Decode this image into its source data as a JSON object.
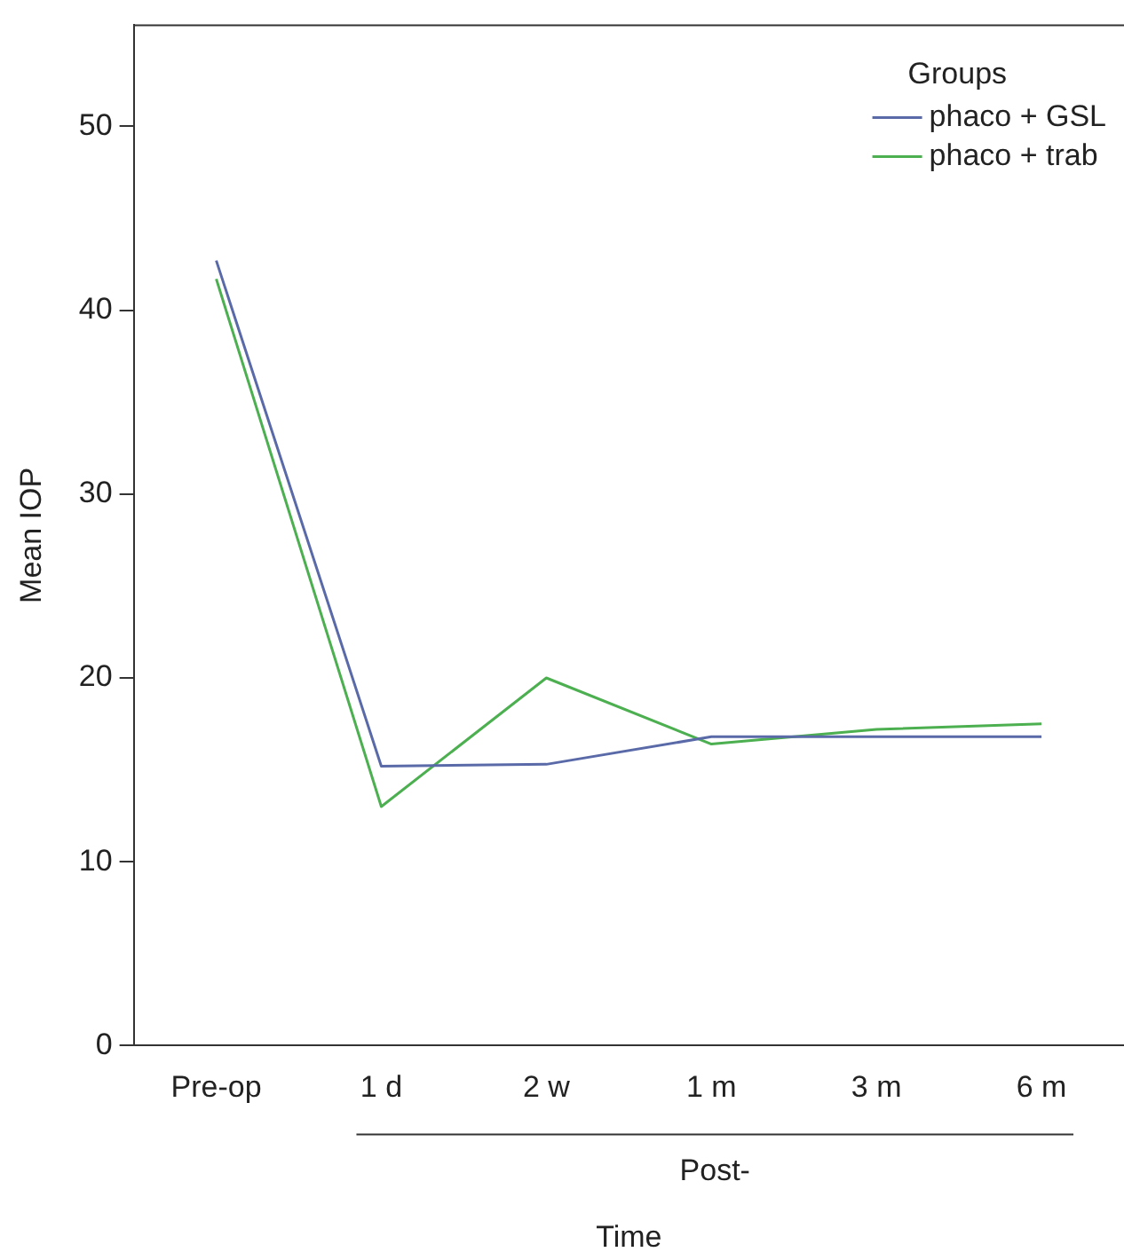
{
  "chart_data": {
    "type": "line",
    "xlabel": "Time",
    "ylabel": "Mean IOP",
    "legend_title": "Groups",
    "legend": "top right",
    "grid": false,
    "marker": "none",
    "line_style": "solid",
    "categories": [
      "Pre-op",
      "1 d",
      "2 w",
      "1 m",
      "3 m",
      "6 m"
    ],
    "ylim": [
      0,
      55.5
    ],
    "yticks": [
      0,
      10,
      20,
      30,
      40,
      50
    ],
    "series": [
      {
        "name": "phaco + GSL",
        "color": "#5a6aa8",
        "values": [
          42.7,
          15.2,
          15.3,
          16.8,
          16.8,
          16.8
        ]
      },
      {
        "name": "phaco + trab",
        "color": "#4caf50",
        "values": [
          41.7,
          13.0,
          20.0,
          16.4,
          17.2,
          17.5
        ]
      }
    ],
    "annotations": [
      "Post-"
    ]
  }
}
